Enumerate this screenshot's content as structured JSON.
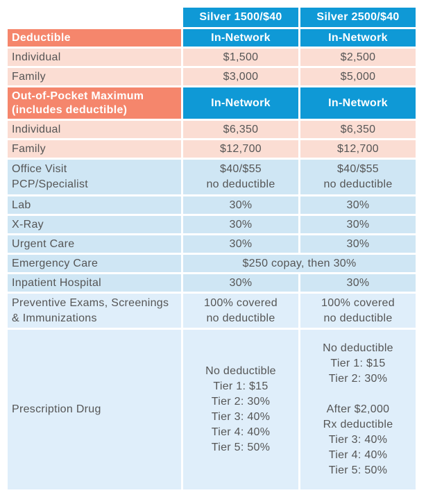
{
  "header": {
    "plan1": "Silver 1500/$40",
    "plan2": "Silver 2500/$40"
  },
  "deductible": {
    "label": "Deductible",
    "col1": "In-Network",
    "col2": "In-Network",
    "rows": [
      {
        "label": "Individual",
        "v1": "$1,500",
        "v2": "$2,500"
      },
      {
        "label": "Family",
        "v1": "$3,000",
        "v2": "$5,000"
      }
    ]
  },
  "oop": {
    "label_line1": "Out-of-Pocket Maximum",
    "label_line2": "(includes deductible)",
    "col1": "In-Network",
    "col2": "In-Network",
    "rows": [
      {
        "label": "Individual",
        "v1": "$6,350",
        "v2": "$6,350"
      },
      {
        "label": "Family",
        "v1": "$12,700",
        "v2": "$12,700"
      }
    ]
  },
  "office_visit": {
    "label_line1": "Office Visit",
    "label_line2": "PCP/Specialist",
    "v1_line1": "$40/$55",
    "v1_line2": "no deductible",
    "v2_line1": "$40/$55",
    "v2_line2": "no deductible"
  },
  "services": [
    {
      "label": "Lab",
      "v1": "30%",
      "v2": "30%"
    },
    {
      "label": "X-Ray",
      "v1": "30%",
      "v2": "30%"
    },
    {
      "label": "Urgent Care",
      "v1": "30%",
      "v2": "30%"
    }
  ],
  "emergency": {
    "label": "Emergency Care",
    "value": "$250 copay, then 30%"
  },
  "inpatient": {
    "label": "Inpatient Hospital",
    "v1": "30%",
    "v2": "30%"
  },
  "preventive": {
    "label_line1": "Preventive Exams, Screenings",
    "label_line2": "& Immunizations",
    "v1_line1": "100% covered",
    "v1_line2": "no deductible",
    "v2_line1": "100% covered",
    "v2_line2": "no deductible"
  },
  "rx": {
    "label": "Prescription Drug",
    "col1": [
      "No deductible",
      "Tier 1: $15",
      "Tier 2: 30%",
      "Tier 3: 40%",
      "Tier 4: 40%",
      "Tier 5: 50%"
    ],
    "col2a": [
      "No deductible",
      "Tier 1: $15",
      "Tier 2: 30%"
    ],
    "col2b": [
      "After $2,000",
      "Rx deductible",
      "Tier 3: 40%",
      "Tier 4: 40%",
      "Tier 5: 50%"
    ]
  },
  "colors": {
    "header_blue": "#0f99d6",
    "section_salmon": "#f5866c",
    "pink_row": "#fbddd3",
    "blue_row": "#cfe6f4",
    "light_blue_row": "#dfeefa"
  }
}
